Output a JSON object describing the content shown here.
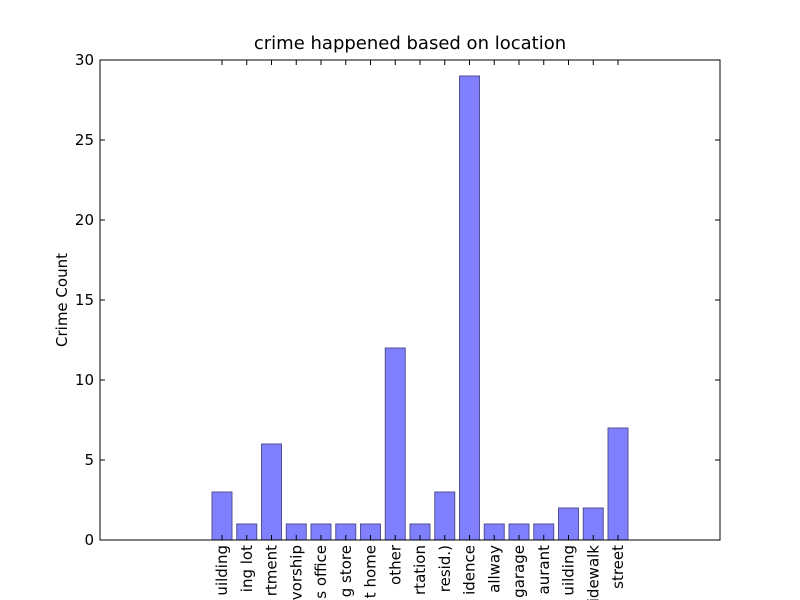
{
  "chart_data": {
    "type": "bar",
    "title": "crime happened based on location",
    "xlabel": "",
    "ylabel": "Crime Count",
    "ylim": [
      0,
      30
    ],
    "yticks": [
      0,
      5,
      10,
      15,
      20,
      25,
      30
    ],
    "grid": false,
    "categories": [
      "uilding",
      "ing lot",
      "rtment",
      "vorship",
      "s office",
      "g store",
      "t home",
      "other",
      "rtation",
      "resid.)",
      "idence",
      "allway",
      "garage",
      "aurant",
      "uilding",
      "idewalk",
      "street"
    ],
    "values": [
      3,
      1,
      6,
      1,
      1,
      1,
      1,
      12,
      1,
      3,
      29,
      1,
      1,
      1,
      2,
      2,
      7
    ],
    "bar_color": "#8080ff",
    "bar_edge_color": "#505090"
  }
}
